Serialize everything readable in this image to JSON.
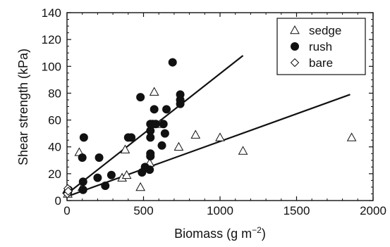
{
  "chart_data": {
    "type": "scatter",
    "xlabel": "Biomass (g m",
    "xlabel_sup": "−2",
    "xlabel_end": ")",
    "ylabel": "Shear strength (kPa)",
    "xlim": [
      0,
      2000
    ],
    "ylim": [
      0,
      140
    ],
    "xticks": [
      0,
      500,
      1000,
      1500,
      2000
    ],
    "yticks": [
      0,
      20,
      40,
      60,
      80,
      100,
      120,
      140
    ],
    "legend_position": "top-right",
    "series": [
      {
        "name": "sedge",
        "marker": "triangle-open",
        "points": [
          [
            0,
            8
          ],
          [
            5,
            5
          ],
          [
            80,
            36
          ],
          [
            100,
            10
          ],
          [
            360,
            17
          ],
          [
            380,
            38
          ],
          [
            390,
            19
          ],
          [
            480,
            10
          ],
          [
            540,
            28
          ],
          [
            570,
            81
          ],
          [
            610,
            57
          ],
          [
            730,
            40
          ],
          [
            840,
            49
          ],
          [
            1000,
            47
          ],
          [
            1150,
            37
          ],
          [
            1860,
            47
          ]
        ]
      },
      {
        "name": "rush",
        "marker": "circle-filled",
        "points": [
          [
            5,
            6
          ],
          [
            10,
            8
          ],
          [
            100,
            32
          ],
          [
            105,
            8
          ],
          [
            105,
            14
          ],
          [
            110,
            47
          ],
          [
            200,
            17
          ],
          [
            210,
            32
          ],
          [
            250,
            11
          ],
          [
            290,
            19
          ],
          [
            400,
            47
          ],
          [
            420,
            47
          ],
          [
            480,
            77
          ],
          [
            490,
            21
          ],
          [
            510,
            25
          ],
          [
            540,
            23
          ],
          [
            545,
            47
          ],
          [
            545,
            52
          ],
          [
            545,
            57
          ],
          [
            545,
            33
          ],
          [
            545,
            35
          ],
          [
            560,
            57
          ],
          [
            570,
            68
          ],
          [
            580,
            57
          ],
          [
            620,
            41
          ],
          [
            630,
            57
          ],
          [
            640,
            50
          ],
          [
            650,
            68
          ],
          [
            690,
            103
          ],
          [
            740,
            75
          ],
          [
            740,
            79
          ],
          [
            740,
            72
          ]
        ]
      },
      {
        "name": "bare",
        "marker": "diamond-open",
        "points": [
          [
            2,
            5
          ],
          [
            5,
            9
          ],
          [
            8,
            7
          ]
        ]
      }
    ],
    "fit_lines": [
      {
        "name": "rush-fit",
        "points": [
          [
            0,
            5
          ],
          [
            1150,
            108
          ]
        ]
      },
      {
        "name": "sedge-fit",
        "points": [
          [
            0,
            3
          ],
          [
            1850,
            79
          ]
        ]
      }
    ]
  }
}
